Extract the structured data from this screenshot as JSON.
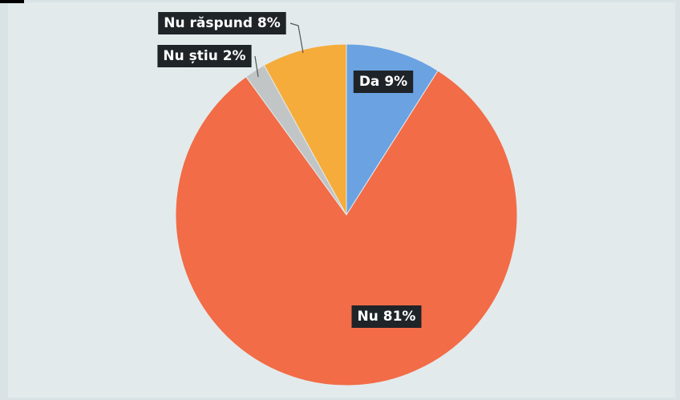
{
  "chart_data": {
    "type": "pie",
    "slices": [
      {
        "label": "Da 9%",
        "value": 9,
        "color": "#6aa2e2"
      },
      {
        "label": "Nu 81%",
        "value": 81,
        "color": "#f26c47"
      },
      {
        "label": "Nu știu 2%",
        "value": 2,
        "color": "#c1c5c5"
      },
      {
        "label": "Nu răspund 8%",
        "value": 8,
        "color": "#f5ac3b"
      }
    ],
    "start_angle_deg": 0,
    "direction": "clockwise"
  }
}
